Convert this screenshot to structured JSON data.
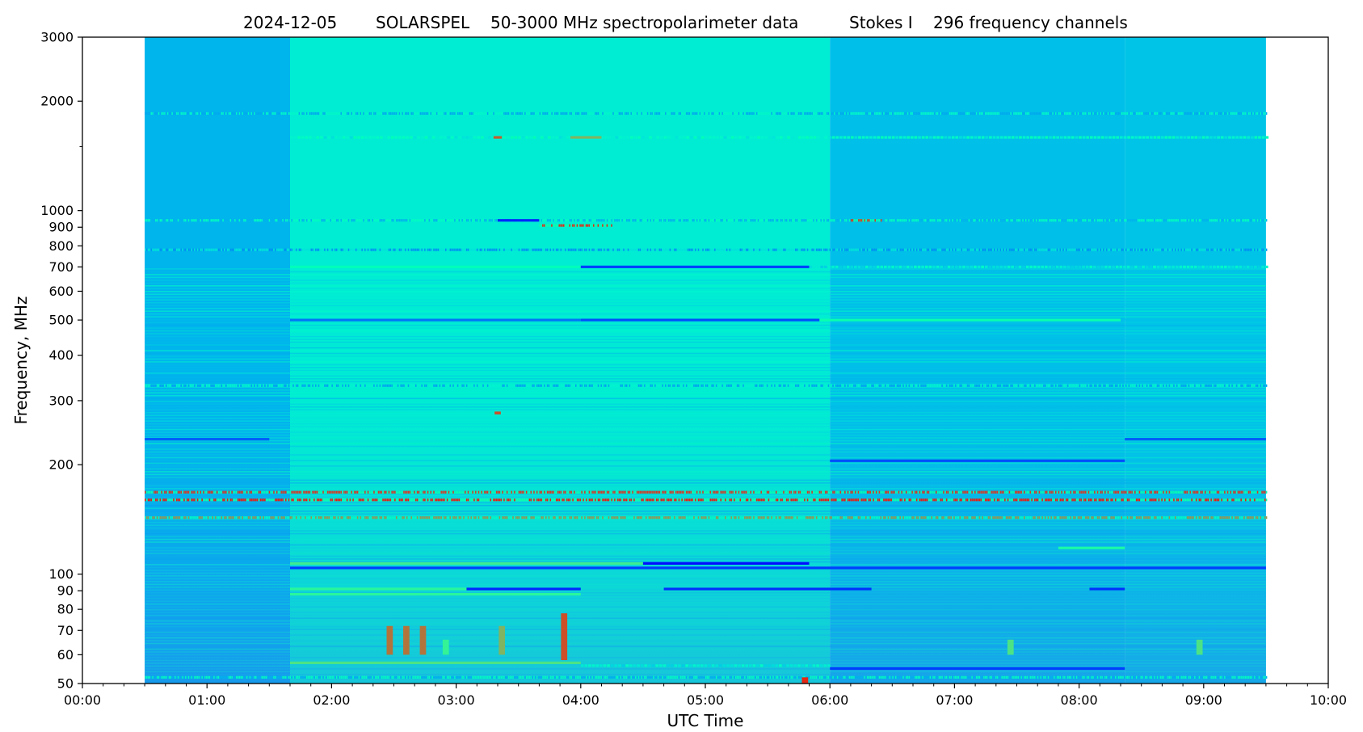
{
  "chart_data": {
    "type": "heatmap",
    "title_parts": [
      "2024-12-05",
      "SOLARSPEL",
      "50-3000 MHz spectropolarimeter data",
      "Stokes I",
      "296 frequency channels"
    ],
    "xlabel": "UTC Time",
    "ylabel": "Frequency, MHz",
    "x_scale": "time",
    "y_scale": "log",
    "xlim": [
      "00:00",
      "10:00"
    ],
    "ylim": [
      50,
      3000
    ],
    "x_ticks": [
      "00:00",
      "01:00",
      "02:00",
      "03:00",
      "04:00",
      "05:00",
      "06:00",
      "07:00",
      "08:00",
      "09:00",
      "10:00"
    ],
    "y_ticks": [
      50,
      60,
      70,
      80,
      90,
      100,
      200,
      300,
      400,
      500,
      600,
      700,
      800,
      900,
      1000,
      2000,
      3000
    ],
    "y_minor_ticks": [
      1500
    ],
    "data_time_range": [
      "00:30",
      "09:30"
    ],
    "colormap": "rainbow",
    "colors": {
      "background_field": "#2a7ff2",
      "low": "#6a35f5",
      "mid": "#35d4ee",
      "high": "#f2e04a",
      "peak": "#ff1a1a"
    },
    "regimes": [
      {
        "start": "00:30",
        "end": "01:40",
        "level": 0.25
      },
      {
        "start": "01:40",
        "end": "06:00",
        "level": 0.38
      },
      {
        "start": "06:00",
        "end": "08:22",
        "level": 0.27
      },
      {
        "start": "08:22",
        "end": "09:30",
        "level": 0.28
      }
    ],
    "bands": [
      {
        "freq": 1850,
        "start": "00:30",
        "end": "09:30",
        "level": 0.42,
        "pattern": "dotted"
      },
      {
        "freq": 1590,
        "start": "01:40",
        "end": "09:30",
        "level": 0.45,
        "pattern": "mixed"
      },
      {
        "freq": 1590,
        "start": "03:18",
        "end": "03:22",
        "level": 0.88,
        "pattern": "solid"
      },
      {
        "freq": 1590,
        "start": "03:55",
        "end": "04:10",
        "level": 0.75,
        "pattern": "solid"
      },
      {
        "freq": 940,
        "start": "00:30",
        "end": "09:30",
        "level": 0.45,
        "pattern": "dotted"
      },
      {
        "freq": 940,
        "start": "03:20",
        "end": "03:40",
        "level": 0.05,
        "pattern": "solid"
      },
      {
        "freq": 940,
        "start": "06:10",
        "end": "06:25",
        "level": 0.92,
        "pattern": "dotted"
      },
      {
        "freq": 910,
        "start": "03:40",
        "end": "04:15",
        "level": 0.95,
        "pattern": "dotted"
      },
      {
        "freq": 780,
        "start": "00:30",
        "end": "09:30",
        "level": 0.35,
        "pattern": "dotted"
      },
      {
        "freq": 700,
        "start": "01:40",
        "end": "04:00",
        "level": 0.48,
        "pattern": "solid"
      },
      {
        "freq": 700,
        "start": "04:00",
        "end": "05:50",
        "level": 0.08,
        "pattern": "solid"
      },
      {
        "freq": 700,
        "start": "05:50",
        "end": "09:30",
        "level": 0.4,
        "pattern": "mixed"
      },
      {
        "freq": 500,
        "start": "01:40",
        "end": "04:00",
        "level": 0.15,
        "pattern": "solid"
      },
      {
        "freq": 500,
        "start": "04:00",
        "end": "05:55",
        "level": 0.1,
        "pattern": "solid"
      },
      {
        "freq": 500,
        "start": "05:55",
        "end": "08:20",
        "level": 0.52,
        "pattern": "solid"
      },
      {
        "freq": 330,
        "start": "00:30",
        "end": "09:30",
        "level": 0.4,
        "pattern": "dotted"
      },
      {
        "freq": 235,
        "start": "00:30",
        "end": "01:30",
        "level": 0.12,
        "pattern": "solid"
      },
      {
        "freq": 235,
        "start": "08:22",
        "end": "09:30",
        "level": 0.12,
        "pattern": "solid"
      },
      {
        "freq": 205,
        "start": "06:00",
        "end": "08:22",
        "level": 0.1,
        "pattern": "solid"
      },
      {
        "freq": 168,
        "start": "00:30",
        "end": "09:30",
        "level": 0.93,
        "pattern": "dotted"
      },
      {
        "freq": 160,
        "start": "00:30",
        "end": "09:30",
        "level": 0.97,
        "pattern": "dotted"
      },
      {
        "freq": 143,
        "start": "00:30",
        "end": "09:30",
        "level": 0.8,
        "pattern": "dotted"
      },
      {
        "freq": 118,
        "start": "07:50",
        "end": "08:22",
        "level": 0.55,
        "pattern": "solid"
      },
      {
        "freq": 107,
        "start": "01:40",
        "end": "04:30",
        "level": 0.62,
        "pattern": "solid"
      },
      {
        "freq": 107,
        "start": "04:30",
        "end": "05:50",
        "level": 0.02,
        "pattern": "solid"
      },
      {
        "freq": 104,
        "start": "01:40",
        "end": "09:30",
        "level": 0.08,
        "pattern": "solid"
      },
      {
        "freq": 91,
        "start": "01:40",
        "end": "03:05",
        "level": 0.58,
        "pattern": "solid"
      },
      {
        "freq": 91,
        "start": "03:05",
        "end": "04:00",
        "level": 0.05,
        "pattern": "solid"
      },
      {
        "freq": 91,
        "start": "04:40",
        "end": "06:20",
        "level": 0.06,
        "pattern": "solid"
      },
      {
        "freq": 91,
        "start": "08:05",
        "end": "08:22",
        "level": 0.06,
        "pattern": "solid"
      },
      {
        "freq": 88,
        "start": "01:40",
        "end": "04:00",
        "level": 0.58,
        "pattern": "solid"
      },
      {
        "freq": 57,
        "start": "01:40",
        "end": "04:00",
        "level": 0.65,
        "pattern": "solid"
      },
      {
        "freq": 56,
        "start": "04:00",
        "end": "06:00",
        "level": 0.4,
        "pattern": "mixed"
      },
      {
        "freq": 55,
        "start": "06:00",
        "end": "08:22",
        "level": 0.08,
        "pattern": "solid"
      },
      {
        "freq": 52,
        "start": "00:30",
        "end": "09:30",
        "level": 0.45,
        "pattern": "dotted"
      }
    ],
    "bursts": [
      {
        "time": "03:52",
        "fmin": 58,
        "fmax": 78,
        "level": 0.9
      },
      {
        "time": "02:28",
        "fmin": 60,
        "fmax": 72,
        "level": 0.85
      },
      {
        "time": "02:36",
        "fmin": 60,
        "fmax": 72,
        "level": 0.85
      },
      {
        "time": "02:44",
        "fmin": 60,
        "fmax": 72,
        "level": 0.85
      },
      {
        "time": "02:55",
        "fmin": 60,
        "fmax": 66,
        "level": 0.6
      },
      {
        "time": "03:22",
        "fmin": 60,
        "fmax": 72,
        "level": 0.75
      },
      {
        "time": "07:27",
        "fmin": 60,
        "fmax": 66,
        "level": 0.65
      },
      {
        "time": "08:58",
        "fmin": 60,
        "fmax": 66,
        "level": 0.65
      },
      {
        "time": "03:20",
        "fmin": 275,
        "fmax": 280,
        "level": 0.9
      },
      {
        "time": "05:48",
        "fmin": 50,
        "fmax": 52,
        "level": 0.95
      }
    ]
  }
}
